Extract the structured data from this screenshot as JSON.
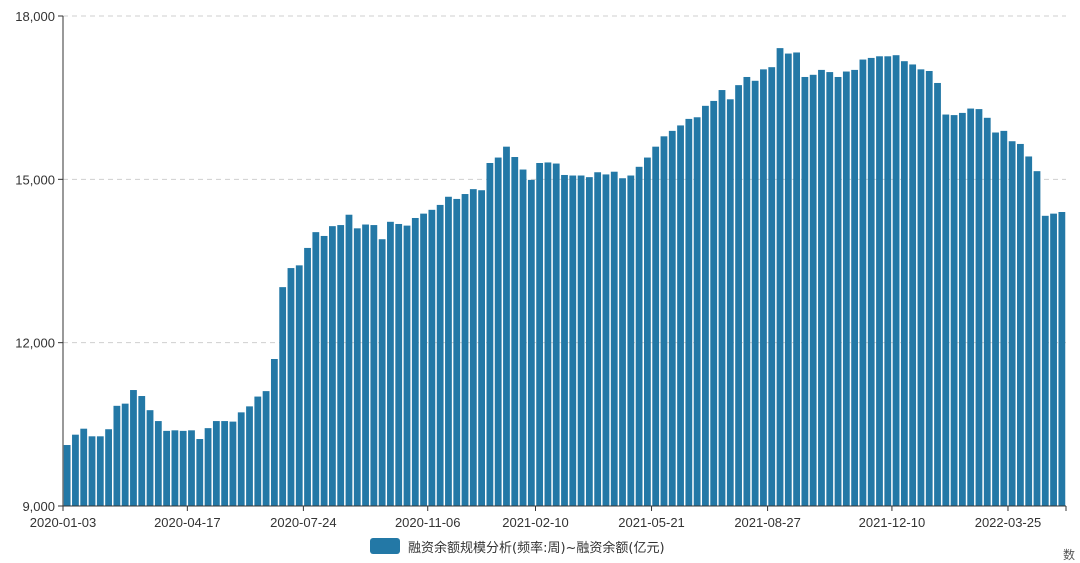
{
  "chart_data": {
    "type": "bar",
    "color": "#2378a6",
    "ylim": [
      9000,
      18000
    ],
    "y_ticks": [
      9000,
      12000,
      15000,
      18000
    ],
    "y_tick_labels": [
      "9,000",
      "12,000",
      "15,000",
      "18,000"
    ],
    "grid": "horizontal dashed",
    "x_tick_labels": [
      {
        "index": 0,
        "label": "2020-01-03"
      },
      {
        "index": 15,
        "label": "2020-04-17"
      },
      {
        "index": 29,
        "label": "2020-07-24"
      },
      {
        "index": 44,
        "label": "2020-11-06"
      },
      {
        "index": 57,
        "label": "2021-02-10"
      },
      {
        "index": 71,
        "label": "2021-05-21"
      },
      {
        "index": 85,
        "label": "2021-08-27"
      },
      {
        "index": 100,
        "label": "2021-12-10"
      },
      {
        "index": 114,
        "label": "2022-03-25"
      }
    ],
    "series": [
      {
        "name": "融资余额规模分析(频率:周)~融资余额(亿元)",
        "values": [
          10120,
          10310,
          10420,
          10280,
          10280,
          10410,
          10840,
          10880,
          11130,
          11020,
          10760,
          10560,
          10380,
          10390,
          10380,
          10390,
          10230,
          10430,
          10560,
          10560,
          10550,
          10720,
          10830,
          11010,
          11110,
          11700,
          13020,
          13370,
          13420,
          13740,
          14030,
          13960,
          14140,
          14160,
          14350,
          14100,
          14170,
          14160,
          13900,
          14220,
          14180,
          14150,
          14290,
          14370,
          14440,
          14530,
          14680,
          14640,
          14730,
          14820,
          14800,
          15300,
          15400,
          15600,
          15410,
          15180,
          14990,
          15300,
          15310,
          15290,
          15080,
          15070,
          15070,
          15040,
          15130,
          15090,
          15140,
          15020,
          15070,
          15230,
          15400,
          15600,
          15790,
          15890,
          15990,
          16110,
          16140,
          16350,
          16440,
          16640,
          16470,
          16730,
          16880,
          16810,
          17020,
          17060,
          17410,
          17310,
          17330,
          16880,
          16920,
          17010,
          16970,
          16880,
          16980,
          17010,
          17200,
          17230,
          17260,
          17260,
          17280,
          17170,
          17110,
          17020,
          16990,
          16770,
          16190,
          16180,
          16220,
          16300,
          16290,
          16130,
          15860,
          15890,
          15700,
          15650,
          15420,
          15150,
          14330,
          14370,
          14400
        ]
      }
    ]
  },
  "legend": {
    "label": "融资余额规模分析(频率:周)~融资余额(亿元)",
    "swatch_color": "#2378a6"
  },
  "corner_text": "数"
}
